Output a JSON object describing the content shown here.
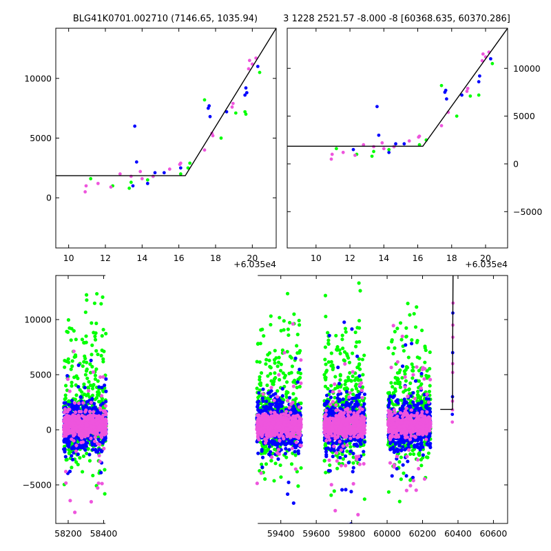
{
  "colors": {
    "blue": "#0000ff",
    "green": "#00ff00",
    "magenta": "#ee55dd",
    "line": "#000000"
  },
  "chart_data": [
    {
      "type": "scatter",
      "title": "BLG41K0701.002710 (7146.65, 1035.94)",
      "xlim": [
        9.3,
        21.3
      ],
      "ylim": [
        -4200,
        14200
      ],
      "x_offset_label": "+6.035e4",
      "xticks": [
        10,
        12,
        14,
        16,
        18,
        20
      ],
      "yticks": [
        0,
        5000,
        10000
      ],
      "yaxis_side": "left",
      "model_line": {
        "x": [
          9.3,
          16.35,
          21.3
        ],
        "y": [
          1850,
          1850,
          14200
        ]
      },
      "series": [
        {
          "color": "blue",
          "x": [
            13.5,
            13.6,
            13.7,
            14.3,
            14.7,
            15.2,
            16.1,
            17.6,
            17.65,
            17.7,
            18.6,
            19.6,
            19.65,
            19.7,
            20.3
          ],
          "y": [
            1000,
            6000,
            3000,
            1200,
            2100,
            2100,
            2500,
            7500,
            7700,
            6800,
            7200,
            8600,
            9200,
            8800,
            11000
          ]
        },
        {
          "color": "green",
          "x": [
            11.2,
            12.4,
            13.3,
            13.4,
            14.3,
            14.6,
            16.1,
            16.5,
            16.6,
            17.4,
            18.3,
            19.1,
            19.6,
            19.65,
            20.4
          ],
          "y": [
            1600,
            1000,
            800,
            1300,
            1500,
            1800,
            2000,
            2500,
            2900,
            8200,
            5000,
            7100,
            7200,
            7000,
            10500
          ]
        },
        {
          "color": "magenta",
          "x": [
            10.9,
            10.95,
            11.6,
            12.3,
            12.8,
            13.4,
            13.9,
            14.0,
            14.6,
            15.5,
            16.05,
            16.1,
            17.4,
            17.8,
            17.85,
            18.9,
            18.95,
            19.8,
            19.85,
            20.0,
            20.2
          ],
          "y": [
            500,
            1000,
            1200,
            900,
            2000,
            1800,
            2200,
            1600,
            1800,
            2400,
            2800,
            2900,
            4000,
            5400,
            5200,
            7600,
            7900,
            10800,
            11500,
            11200,
            11700
          ]
        }
      ]
    },
    {
      "type": "scatter",
      "title": "3 1228 2521.57 -8.000 -8 [60368.635, 60370.286]",
      "xlim": [
        8.3,
        21.3
      ],
      "ylim": [
        -8800,
        14200
      ],
      "x_offset_label": "+6.035e4",
      "xticks": [
        10,
        12,
        14,
        16,
        18,
        20
      ],
      "yticks": [
        -5000,
        0,
        5000,
        10000
      ],
      "yaxis_side": "right",
      "model_line": {
        "x": [
          8.3,
          16.3,
          21.3
        ],
        "y": [
          1850,
          1850,
          14200
        ]
      },
      "series": [
        {
          "color": "blue",
          "x": [
            12.2,
            13.6,
            13.7,
            14.3,
            14.7,
            15.2,
            17.6,
            17.65,
            17.7,
            18.6,
            19.6,
            19.65,
            20.3
          ],
          "y": [
            1500,
            6000,
            3000,
            1200,
            2100,
            2100,
            7500,
            7700,
            6800,
            7200,
            8600,
            9200,
            11000
          ]
        },
        {
          "color": "green",
          "x": [
            11.2,
            12.4,
            13.3,
            13.4,
            14.3,
            14.6,
            16.1,
            16.5,
            17.4,
            18.3,
            19.1,
            19.6,
            20.4
          ],
          "y": [
            1600,
            1000,
            800,
            1300,
            1500,
            1800,
            2000,
            2500,
            8200,
            5000,
            7100,
            7200,
            10500
          ]
        },
        {
          "color": "magenta",
          "x": [
            10.9,
            10.95,
            11.6,
            12.3,
            12.8,
            13.4,
            13.9,
            14.0,
            14.6,
            15.5,
            16.05,
            16.1,
            17.4,
            17.8,
            18.9,
            18.95,
            19.8,
            19.85,
            20.0,
            20.2
          ],
          "y": [
            500,
            1000,
            1200,
            900,
            2000,
            1800,
            2200,
            1600,
            1800,
            2400,
            2800,
            2900,
            4000,
            5400,
            7600,
            7900,
            10800,
            11500,
            11200,
            11700
          ]
        }
      ]
    },
    {
      "type": "scatter",
      "title": "",
      "xlim": [
        58130,
        60680
      ],
      "ylim": [
        -8500,
        14000
      ],
      "xticks": [
        58200,
        58400,
        59400,
        59600,
        59800,
        60000,
        60200,
        60400,
        60600
      ],
      "yticks": [
        -5000,
        0,
        5000,
        10000
      ],
      "axis_break_x": [
        58410,
        59270
      ],
      "x_bands": [
        [
          58175,
          58415
        ],
        [
          59265,
          59515
        ],
        [
          59645,
          59875
        ],
        [
          60005,
          60245
        ]
      ],
      "points_per_band": 520,
      "model_line": {
        "x": [
          60300,
          60366,
          60366,
          60369,
          60370,
          60371,
          60372
        ],
        "y": [
          1850,
          1850,
          1850,
          1850,
          8000,
          11000,
          14000
        ]
      },
      "series": [
        {
          "name": "",
          "color": "green"
        },
        {
          "name": "",
          "color": "blue"
        },
        {
          "name": "",
          "color": "magenta"
        }
      ]
    }
  ]
}
